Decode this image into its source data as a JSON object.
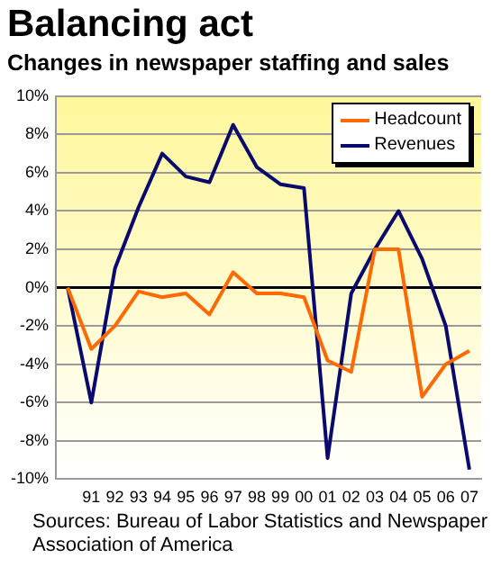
{
  "chart_data": {
    "type": "line",
    "title": "Balancing act",
    "subtitle": "Changes in newspaper staffing and sales",
    "categories": [
      null,
      "91",
      "92",
      "93",
      "94",
      "95",
      "96",
      "97",
      "98",
      "99",
      "00",
      "01",
      "02",
      "03",
      "04",
      "05",
      "06",
      "07"
    ],
    "series": [
      {
        "name": "Headcount",
        "color": "#ff6a00",
        "values": [
          0,
          -3.2,
          -2,
          -0.2,
          -0.5,
          -0.3,
          -1.4,
          0.8,
          -0.3,
          -0.3,
          -0.5,
          -3.8,
          -4.4,
          2,
          2,
          -5.7,
          -4,
          -3.3
        ]
      },
      {
        "name": "Revenues",
        "color": "#0a0a6e",
        "values": [
          0,
          -6,
          1,
          4.2,
          7,
          5.8,
          5.5,
          8.5,
          6.3,
          5.4,
          5.2,
          -8.9,
          -0.3,
          2,
          4,
          1.5,
          -2,
          -9.5
        ]
      }
    ],
    "ylim": [
      -10,
      10
    ],
    "yticks": [
      {
        "value": -10,
        "label": "-10%"
      },
      {
        "value": -8,
        "label": "-8%"
      },
      {
        "value": -6,
        "label": "-6%"
      },
      {
        "value": -4,
        "label": "-4%"
      },
      {
        "value": -2,
        "label": "-2%"
      },
      {
        "value": 0,
        "label": "0%"
      },
      {
        "value": 2,
        "label": "2%"
      },
      {
        "value": 4,
        "label": "4%"
      },
      {
        "value": 6,
        "label": "6%"
      },
      {
        "value": 8,
        "label": "8%"
      },
      {
        "value": 10,
        "label": "10%"
      }
    ],
    "grid": "y",
    "legend": "top right",
    "marker": "none",
    "line_style": "solid",
    "annotations": [
      "Sources: Bureau of Labor Statistics and Newspaper Association of America"
    ]
  }
}
